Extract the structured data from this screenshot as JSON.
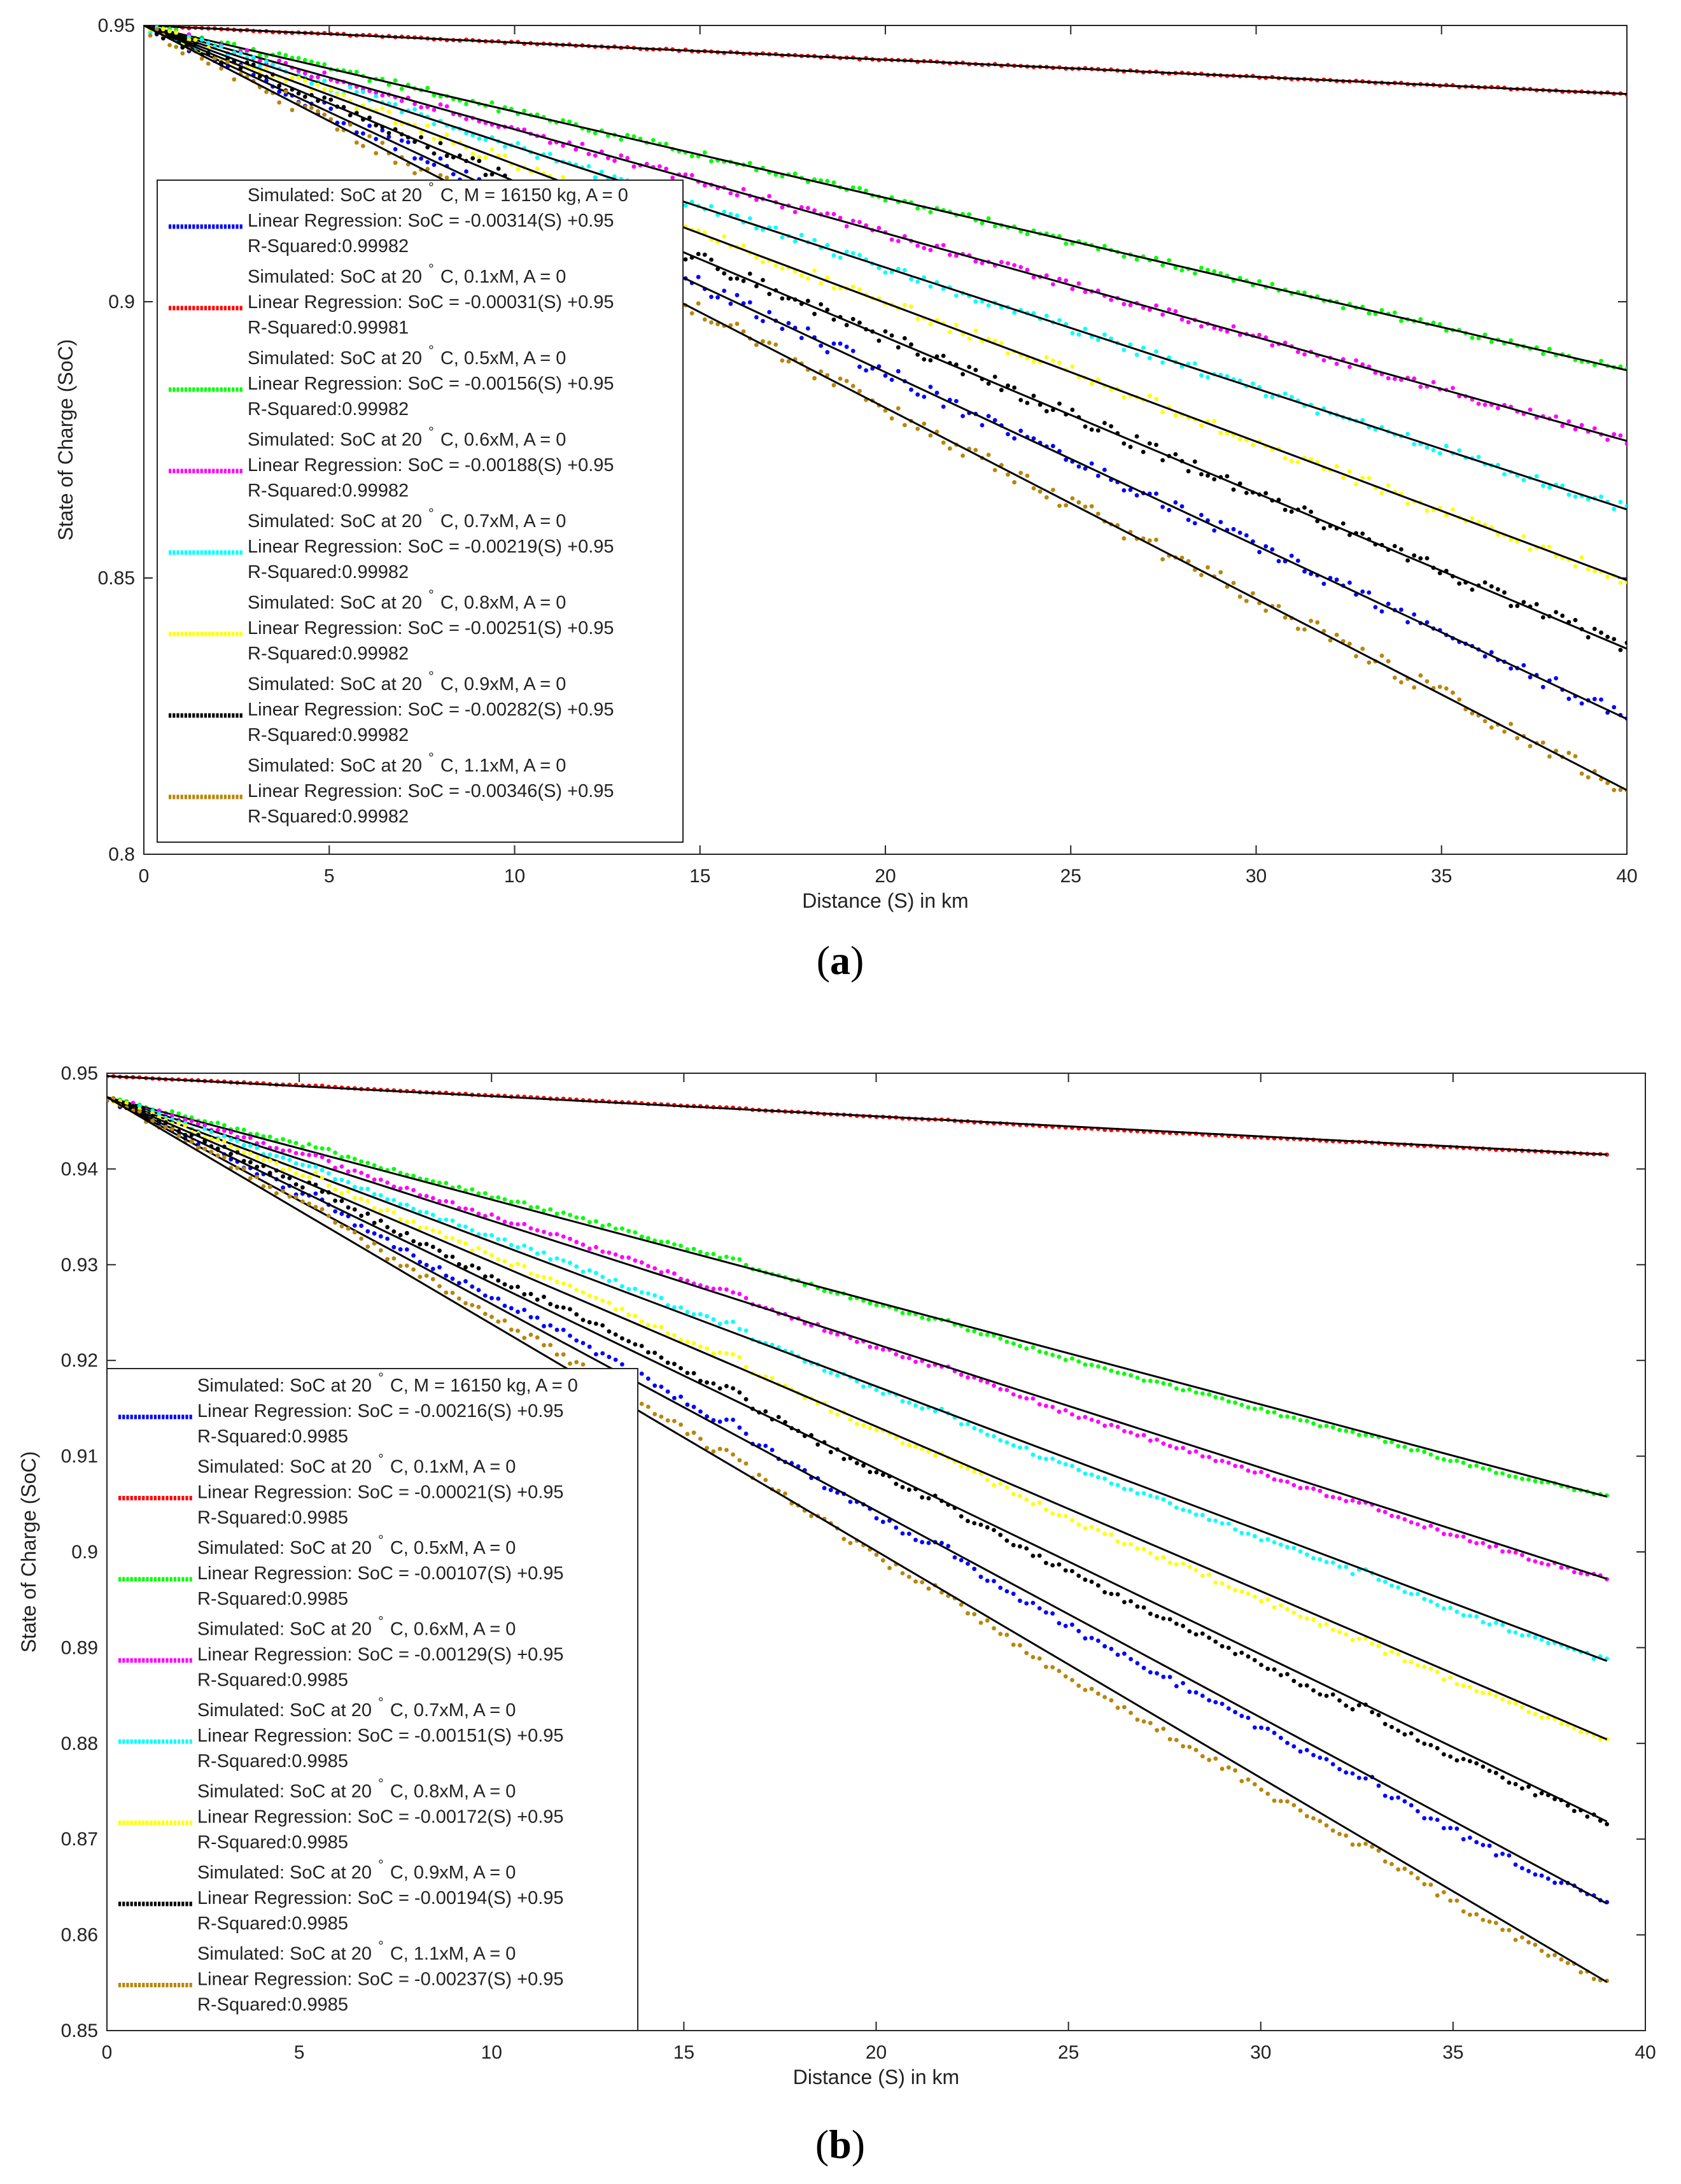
{
  "chart_data": [
    {
      "type": "scatter",
      "panel_label": "(a)",
      "panel_label_letter": "a",
      "xlabel": "Distance (S) in km",
      "ylabel": "State of Charge (SoC)",
      "xlim": [
        0,
        40
      ],
      "ylim": [
        0.8,
        0.95
      ],
      "xticks": [
        0,
        5,
        10,
        15,
        20,
        25,
        30,
        35,
        40
      ],
      "xtick_labels": [
        "0",
        "5",
        "10",
        "15",
        "20",
        "25",
        "30",
        "35",
        "40"
      ],
      "yticks": [
        0.8,
        0.85,
        0.9,
        0.95
      ],
      "ytick_labels": [
        "0.8",
        "0.85",
        "0.9",
        "0.95"
      ],
      "x_end": 40,
      "legend_position": "left",
      "series": [
        {
          "name": "Simulated: SoC at 20 °C, M = 16150 kg, A = 0",
          "label_line1_pre": "Simulated: SoC at 20",
          "label_line1_post": "C, M = 16150 kg, A = 0",
          "regression": "Linear Regression: SoC = -0.00314(S) +0.95",
          "r_squared": "R-Squared:0.99982",
          "slope": -0.003138,
          "intercept": 0.95,
          "color": "#0000ff"
        },
        {
          "name": "Simulated: SoC at 20 °C, 0.1xM, A = 0",
          "label_line1_pre": "Simulated: SoC at 20",
          "label_line1_post": "C, 0.1xM, A = 0",
          "regression": "Linear Regression: SoC = -0.00031(S) +0.95",
          "r_squared": "R-Squared:0.99981",
          "slope": -0.00031,
          "intercept": 0.95,
          "color": "#ff0000"
        },
        {
          "name": "Simulated: SoC at 20 °C, 0.5xM, A = 0",
          "label_line1_pre": "Simulated: SoC at 20",
          "label_line1_post": "C, 0.5xM, A = 0",
          "regression": "Linear Regression: SoC = -0.00156(S) +0.95",
          "r_squared": "R-Squared:0.99982",
          "slope": -0.00156,
          "intercept": 0.95,
          "color": "#00ff00"
        },
        {
          "name": "Simulated: SoC at 20 °C, 0.6xM, A = 0",
          "label_line1_pre": "Simulated: SoC at 20",
          "label_line1_post": "C, 0.6xM, A = 0",
          "regression": "Linear Regression: SoC = -0.00188(S) +0.95",
          "r_squared": "R-Squared:0.99982",
          "slope": -0.00188,
          "intercept": 0.95,
          "color": "#ff00ff"
        },
        {
          "name": "Simulated: SoC at 20 °C, 0.7xM, A = 0",
          "label_line1_pre": "Simulated: SoC at 20",
          "label_line1_post": "C, 0.7xM, A = 0",
          "regression": "Linear Regression: SoC = -0.00219(S) +0.95",
          "r_squared": "R-Squared:0.99982",
          "slope": -0.00219,
          "intercept": 0.95,
          "color": "#00ffff"
        },
        {
          "name": "Simulated: SoC at 20 °C, 0.8xM, A = 0",
          "label_line1_pre": "Simulated: SoC at 20",
          "label_line1_post": "C, 0.8xM, A = 0",
          "regression": "Linear Regression: SoC = -0.00251(S) +0.95",
          "r_squared": "R-Squared:0.99982",
          "slope": -0.00251,
          "intercept": 0.95,
          "color": "#ffff00"
        },
        {
          "name": "Simulated: SoC at 20 °C, 0.9xM, A = 0",
          "label_line1_pre": "Simulated: SoC at 20",
          "label_line1_post": "C, 0.9xM, A = 0",
          "regression": "Linear Regression: SoC = -0.00282(S) +0.95",
          "r_squared": "R-Squared:0.99982",
          "slope": -0.00282,
          "intercept": 0.95,
          "color": "#000000"
        },
        {
          "name": "Simulated: SoC at 20 °C, 1.1xM, A = 0",
          "label_line1_pre": "Simulated: SoC at 20",
          "label_line1_post": "C, 1.1xM, A = 0",
          "regression": "Linear Regression: SoC = -0.00346(S) +0.95",
          "r_squared": "R-Squared:0.99982",
          "slope": -0.00346,
          "intercept": 0.95,
          "color": "#b8860b"
        }
      ]
    },
    {
      "type": "scatter",
      "panel_label": "(b)",
      "panel_label_letter": "b",
      "xlabel": "Distance (S) in km",
      "ylabel": "State of Charge (SoC)",
      "xlim": [
        0,
        40
      ],
      "ylim": [
        0.85,
        0.95
      ],
      "xticks": [
        0,
        5,
        10,
        15,
        20,
        25,
        30,
        35,
        40
      ],
      "xtick_labels": [
        "0",
        "5",
        "10",
        "15",
        "20",
        "25",
        "30",
        "35",
        "40"
      ],
      "yticks": [
        0.85,
        0.86,
        0.87,
        0.88,
        0.89,
        0.9,
        0.91,
        0.92,
        0.93,
        0.94,
        0.95
      ],
      "ytick_labels": [
        "0.85",
        "0.86",
        "0.87",
        "0.88",
        "0.89",
        "0.9",
        "0.91",
        "0.92",
        "0.93",
        "0.94",
        "0.95"
      ],
      "x_end": 39,
      "legend_position": "left",
      "series": [
        {
          "name": "Simulated: SoC at 20 °C, M = 16150 kg, A = 0",
          "label_line1_pre": "Simulated: SoC at 20",
          "label_line1_post": "C, M = 16150 kg, A = 0",
          "regression": "Linear Regression: SoC = -0.00216(S) +0.95",
          "r_squared": "R-Squared:0.9985",
          "slope": -0.00216,
          "intercept": 0.9475,
          "color": "#0000ff"
        },
        {
          "name": "Simulated: SoC at 20 °C, 0.1xM, A = 0",
          "label_line1_pre": "Simulated: SoC at 20",
          "label_line1_post": "C, 0.1xM, A = 0",
          "regression": "Linear Regression: SoC = -0.00021(S) +0.95",
          "r_squared": "R-Squared:0.9985",
          "slope": -0.00021,
          "intercept": 0.9497,
          "color": "#ff0000"
        },
        {
          "name": "Simulated: SoC at 20 °C, 0.5xM, A = 0",
          "label_line1_pre": "Simulated: SoC at 20",
          "label_line1_post": "C, 0.5xM, A = 0",
          "regression": "Linear Regression: SoC = -0.00107(S) +0.95",
          "r_squared": "R-Squared:0.9985",
          "slope": -0.00107,
          "intercept": 0.9475,
          "color": "#00ff00"
        },
        {
          "name": "Simulated: SoC at 20 °C, 0.6xM, A = 0",
          "label_line1_pre": "Simulated: SoC at 20",
          "label_line1_post": "C, 0.6xM, A = 0",
          "regression": "Linear Regression: SoC = -0.00129(S) +0.95",
          "r_squared": "R-Squared:0.9985",
          "slope": -0.00129,
          "intercept": 0.9475,
          "color": "#ff00ff"
        },
        {
          "name": "Simulated: SoC at 20 °C, 0.7xM, A = 0",
          "label_line1_pre": "Simulated: SoC at 20",
          "label_line1_post": "C, 0.7xM, A = 0",
          "regression": "Linear Regression: SoC = -0.00151(S) +0.95",
          "r_squared": "R-Squared:0.9985",
          "slope": -0.00151,
          "intercept": 0.9475,
          "color": "#00ffff"
        },
        {
          "name": "Simulated: SoC at 20 °C, 0.8xM, A = 0",
          "label_line1_pre": "Simulated: SoC at 20",
          "label_line1_post": "C, 0.8xM, A = 0",
          "regression": "Linear Regression: SoC = -0.00172(S) +0.95",
          "r_squared": "R-Squared:0.9985",
          "slope": -0.00172,
          "intercept": 0.9475,
          "color": "#ffff00"
        },
        {
          "name": "Simulated: SoC at 20 °C, 0.9xM, A = 0",
          "label_line1_pre": "Simulated: SoC at 20",
          "label_line1_post": "C, 0.9xM, A = 0",
          "regression": "Linear Regression: SoC = -0.00194(S) +0.95",
          "r_squared": "R-Squared:0.9985",
          "slope": -0.00194,
          "intercept": 0.9475,
          "color": "#000000"
        },
        {
          "name": "Simulated: SoC at 20 °C, 1.1xM, A = 0",
          "label_line1_pre": "Simulated: SoC at 20",
          "label_line1_post": "C, 1.1xM, A = 0",
          "regression": "Linear Regression: SoC = -0.00237(S) +0.95",
          "r_squared": "R-Squared:0.9985",
          "slope": -0.00237,
          "intercept": 0.9475,
          "color": "#b8860b"
        }
      ],
      "bump_positions_km": [
        5.7,
        16.5,
        22.0,
        33.0
      ]
    }
  ]
}
